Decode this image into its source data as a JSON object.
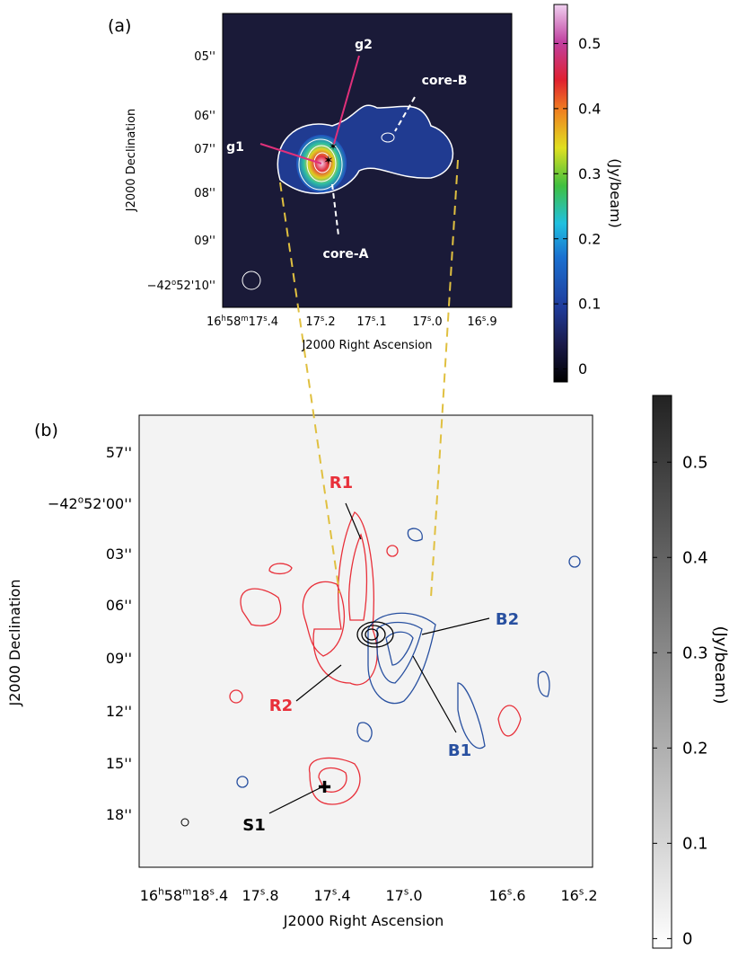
{
  "panel_a": {
    "label": "(a)",
    "x_label": "J2000 Right Ascension",
    "y_label": "J2000 Declination",
    "x_ticks": [
      [
        {
          "text": "16"
        },
        {
          "sup": "h"
        },
        {
          "text": "58"
        },
        {
          "sup": "m"
        },
        {
          "text": "17"
        },
        {
          "sup": "s"
        },
        {
          "text": ".4"
        }
      ],
      [
        {
          "text": "17"
        },
        {
          "sup": "s"
        },
        {
          "text": ".2"
        }
      ],
      [
        {
          "text": "17"
        },
        {
          "sup": "s"
        },
        {
          "text": ".1"
        }
      ],
      [
        {
          "text": "17"
        },
        {
          "sup": "s"
        },
        {
          "text": ".0"
        }
      ],
      [
        {
          "text": "16"
        },
        {
          "sup": "s"
        },
        {
          "text": ".9"
        }
      ]
    ],
    "y_ticks": [
      [
        {
          "text": "05''"
        }
      ],
      [
        {
          "text": "06''"
        }
      ],
      [
        {
          "text": "07''"
        }
      ],
      [
        {
          "text": "08''"
        }
      ],
      [
        {
          "text": "09''"
        }
      ],
      [
        {
          "text": "−42"
        },
        {
          "sup": "o"
        },
        {
          "text": "52'10''"
        }
      ]
    ],
    "annotations": [
      "g1",
      "g2",
      "core-B",
      "core-A"
    ],
    "colorbar": {
      "label": "(Jy/beam)",
      "lim": [
        -0.02,
        0.56
      ],
      "ticks": [
        0,
        0.1,
        0.2,
        0.3,
        0.4,
        0.5
      ]
    }
  },
  "panel_b": {
    "label": "(b)",
    "x_label": "J2000 Right Ascension",
    "y_label": "J2000 Declination",
    "x_ticks": [
      [
        {
          "text": "16"
        },
        {
          "sup": "h"
        },
        {
          "text": "58"
        },
        {
          "sup": "m"
        },
        {
          "text": "18"
        },
        {
          "sup": "s"
        },
        {
          "text": ".4"
        }
      ],
      [
        {
          "text": "17"
        },
        {
          "sup": "s"
        },
        {
          "text": ".8"
        }
      ],
      [
        {
          "text": "17"
        },
        {
          "sup": "s"
        },
        {
          "text": ".4"
        }
      ],
      [
        {
          "text": "17"
        },
        {
          "sup": "s"
        },
        {
          "text": ".0"
        }
      ],
      [
        {
          "text": "16"
        },
        {
          "sup": "s"
        },
        {
          "text": ".6"
        }
      ],
      [
        {
          "text": "16"
        },
        {
          "sup": "s"
        },
        {
          "text": ".2"
        }
      ]
    ],
    "y_ticks": [
      [
        {
          "text": "57''"
        }
      ],
      [
        {
          "text": "−42"
        },
        {
          "sup": "o"
        },
        {
          "text": "52'00''"
        }
      ],
      [
        {
          "text": "03''"
        }
      ],
      [
        {
          "text": "06''"
        }
      ],
      [
        {
          "text": "09''"
        }
      ],
      [
        {
          "text": "12''"
        }
      ],
      [
        {
          "text": "15''"
        }
      ],
      [
        {
          "text": "18''"
        }
      ]
    ],
    "annotations": [
      "R1",
      "R2",
      "B1",
      "B2",
      "S1"
    ],
    "colorbar": {
      "label": "(Jy/beam)",
      "lim": [
        -0.01,
        0.57
      ],
      "ticks": [
        0,
        0.1,
        0.2,
        0.3,
        0.4,
        0.5
      ]
    }
  }
}
